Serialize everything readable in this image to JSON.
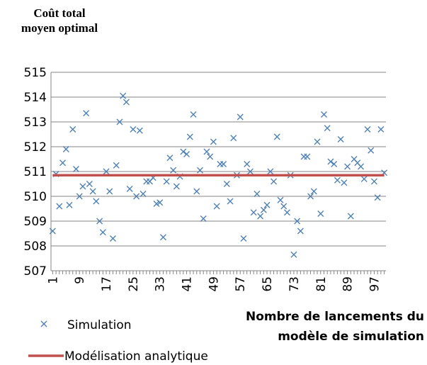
{
  "chart_data": {
    "type": "scatter",
    "y_label": "Coût total moyen optimal",
    "x_label": "Nombre de lancements du modèle de simulation",
    "x": [
      1,
      2,
      3,
      4,
      5,
      6,
      7,
      8,
      9,
      10,
      11,
      12,
      13,
      14,
      15,
      16,
      17,
      18,
      19,
      20,
      21,
      22,
      23,
      24,
      25,
      26,
      27,
      28,
      29,
      30,
      31,
      32,
      33,
      34,
      35,
      36,
      37,
      38,
      39,
      40,
      41,
      42,
      43,
      44,
      45,
      46,
      47,
      48,
      49,
      50,
      51,
      52,
      53,
      54,
      55,
      56,
      57,
      58,
      59,
      60,
      61,
      62,
      63,
      64,
      65,
      66,
      67,
      68,
      69,
      70,
      71,
      72,
      73,
      74,
      75,
      76,
      77,
      78,
      79,
      80,
      81,
      82,
      83,
      84,
      85,
      86,
      87,
      88,
      89,
      90,
      91,
      92,
      93,
      94,
      95,
      96,
      97,
      98,
      99,
      100
    ],
    "xlim": [
      0.5,
      100.5
    ],
    "xticks": [
      1,
      9,
      17,
      25,
      33,
      41,
      49,
      57,
      65,
      73,
      81,
      89,
      97
    ],
    "ylim": [
      507,
      515
    ],
    "yticks": [
      507,
      508,
      509,
      510,
      511,
      512,
      513,
      514,
      515
    ],
    "grid": true,
    "series": [
      {
        "name": "Simulation",
        "type": "scatter",
        "color": "#4a7ebb",
        "values": [
          508.6,
          510.9,
          509.6,
          511.35,
          511.9,
          509.65,
          512.7,
          511.1,
          510.0,
          510.4,
          513.35,
          510.5,
          510.2,
          509.8,
          509.0,
          508.55,
          511.0,
          510.2,
          508.3,
          511.25,
          513.0,
          514.05,
          513.8,
          510.3,
          512.7,
          510.0,
          512.65,
          510.1,
          510.6,
          510.6,
          510.75,
          509.7,
          509.75,
          508.35,
          510.6,
          511.55,
          511.05,
          510.4,
          510.8,
          511.8,
          511.7,
          512.4,
          513.3,
          510.2,
          511.05,
          509.1,
          511.8,
          511.6,
          512.2,
          509.6,
          511.3,
          511.3,
          510.5,
          509.8,
          512.35,
          510.85,
          513.2,
          508.3,
          511.3,
          511.0,
          509.35,
          510.1,
          509.2,
          509.45,
          509.65,
          511.0,
          510.6,
          512.4,
          509.85,
          509.6,
          509.35,
          510.85,
          507.65,
          509.0,
          508.6,
          511.6,
          511.6,
          510.0,
          510.2,
          512.2,
          509.3,
          513.3,
          512.75,
          511.4,
          511.3,
          510.65,
          512.3,
          510.55,
          511.2,
          509.2,
          511.5,
          511.35,
          511.2,
          510.7,
          512.7,
          511.85,
          510.6,
          509.95,
          512.7,
          510.95
        ]
      },
      {
        "name": "Modélisation analytique",
        "type": "line",
        "color": "#c0504d",
        "values": [
          510.85,
          510.85,
          510.85,
          510.85,
          510.85,
          510.85,
          510.85,
          510.85,
          510.85,
          510.85,
          510.85,
          510.85,
          510.85,
          510.85,
          510.85,
          510.85,
          510.85,
          510.85,
          510.85,
          510.85,
          510.85,
          510.85,
          510.85,
          510.85,
          510.85,
          510.85,
          510.85,
          510.85,
          510.85,
          510.85,
          510.85,
          510.85,
          510.85,
          510.85,
          510.85,
          510.85,
          510.85,
          510.85,
          510.85,
          510.85,
          510.85,
          510.85,
          510.85,
          510.85,
          510.85,
          510.85,
          510.85,
          510.85,
          510.85,
          510.85,
          510.85,
          510.85,
          510.85,
          510.85,
          510.85,
          510.85,
          510.85,
          510.85,
          510.85,
          510.85,
          510.85,
          510.85,
          510.85,
          510.85,
          510.85,
          510.85,
          510.85,
          510.85,
          510.85,
          510.85,
          510.85,
          510.85,
          510.85,
          510.85,
          510.85,
          510.85,
          510.85,
          510.85,
          510.85,
          510.85,
          510.85,
          510.85,
          510.85,
          510.85,
          510.85,
          510.85,
          510.85,
          510.85,
          510.85,
          510.85,
          510.85,
          510.85,
          510.85,
          510.85,
          510.85,
          510.85,
          510.85,
          510.85,
          510.85,
          510.85
        ]
      }
    ]
  }
}
